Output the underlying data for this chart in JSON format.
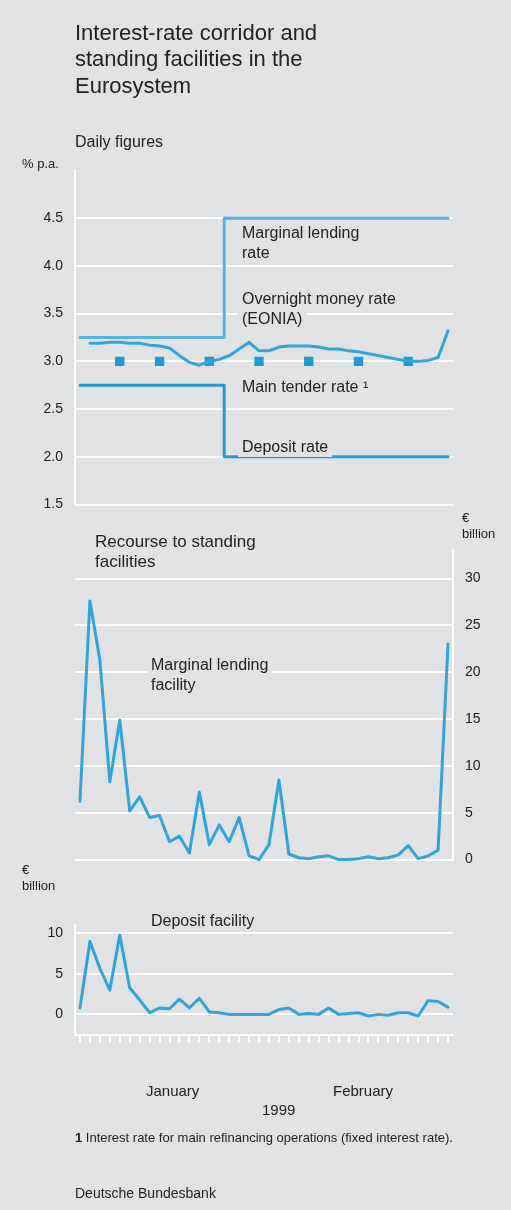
{
  "chart_data": [
    {
      "type": "line",
      "title": "Interest-rate corridor and standing facilities in the Eurosystem",
      "subtitle": "Daily figures",
      "ylabel": "% p.a.",
      "categories": [
        null,
        null,
        null,
        null,
        null,
        null,
        null,
        null,
        null,
        null,
        null,
        null,
        null,
        null,
        null,
        null,
        null,
        null,
        null,
        null,
        null,
        null,
        null,
        null,
        null,
        null,
        null,
        null,
        null,
        null,
        null,
        null,
        null,
        null,
        null,
        null,
        null,
        null
      ],
      "ylim": [
        1.5,
        5.0
      ],
      "yticks": [
        1.5,
        {
          "value": 2,
          "label": "2.0"
        },
        2.5,
        {
          "value": 3,
          "label": "3.0"
        },
        3.5,
        {
          "value": 4,
          "label": "4.0"
        },
        4.5
      ],
      "grid": "y",
      "legend": false,
      "series": [
        {
          "name": "Marginal lending rate",
          "type": "step",
          "color": "#4db6e2",
          "values": [
            3.25,
            3.25,
            3.25,
            3.25,
            3.25,
            3.25,
            3.25,
            3.25,
            3.25,
            3.25,
            3.25,
            3.25,
            3.25,
            3.25,
            3.25,
            4.5,
            4.5,
            4.5,
            4.5,
            4.5,
            4.5,
            4.5,
            4.5,
            4.5,
            4.5,
            4.5,
            4.5,
            4.5,
            4.5,
            4.5,
            4.5,
            4.5,
            4.5,
            4.5,
            4.5,
            4.5,
            4.5,
            4.5
          ]
        },
        {
          "name": "Overnight money rate (EONIA)",
          "type": "line",
          "color": "#2ea6dc",
          "values": [
            null,
            3.19,
            3.19,
            3.2,
            3.2,
            3.19,
            3.19,
            3.17,
            3.16,
            3.14,
            3.06,
            2.99,
            2.96,
            3.0,
            3.02,
            3.06,
            3.13,
            3.2,
            3.11,
            3.11,
            3.15,
            3.16,
            3.16,
            3.16,
            3.15,
            3.13,
            3.13,
            3.11,
            3.1,
            3.08,
            3.06,
            3.04,
            3.02,
            3.0,
            3.0,
            3.01,
            3.04,
            3.32
          ]
        },
        {
          "name": "Main tender rate ¹",
          "type": "scatter",
          "marker": "square",
          "color": "#1a9ad6",
          "values": [
            null,
            null,
            null,
            null,
            3.0,
            null,
            null,
            null,
            3.0,
            null,
            null,
            null,
            null,
            3.0,
            null,
            null,
            null,
            null,
            3.0,
            null,
            null,
            null,
            null,
            3.0,
            null,
            null,
            null,
            null,
            3.0,
            null,
            null,
            null,
            null,
            3.0,
            null,
            null,
            null,
            null
          ]
        },
        {
          "name": "Deposit rate",
          "type": "step",
          "color": "#1f9cd8",
          "values": [
            2.75,
            2.75,
            2.75,
            2.75,
            2.75,
            2.75,
            2.75,
            2.75,
            2.75,
            2.75,
            2.75,
            2.75,
            2.75,
            2.75,
            2.75,
            2.0,
            2.0,
            2.0,
            2.0,
            2.0,
            2.0,
            2.0,
            2.0,
            2.0,
            2.0,
            2.0,
            2.0,
            2.0,
            2.0,
            2.0,
            2.0,
            2.0,
            2.0,
            2.0,
            2.0,
            2.0,
            2.0,
            2.0
          ]
        }
      ]
    },
    {
      "type": "line",
      "title": "Recourse to standing facilities",
      "ylabel": "€ billion",
      "categories": [
        null,
        null,
        null,
        null,
        null,
        null,
        null,
        null,
        null,
        null,
        null,
        null,
        null,
        null,
        null,
        null,
        null,
        null,
        null,
        null,
        null,
        null,
        null,
        null,
        null,
        null,
        null,
        null,
        null,
        null,
        null,
        null,
        null,
        null,
        null,
        null,
        null,
        null
      ],
      "ylim": [
        0,
        33
      ],
      "yticks": [
        0,
        5,
        10,
        15,
        20,
        25,
        30
      ],
      "grid": "y",
      "legend": false,
      "series": [
        {
          "name": "Marginal lending facility",
          "color": "#2ea6dc",
          "values": [
            6.2,
            27.6,
            21.3,
            8.3,
            14.9,
            5.2,
            6.7,
            4.5,
            4.7,
            1.9,
            2.5,
            0.7,
            7.2,
            1.6,
            3.7,
            1.9,
            4.5,
            0.4,
            0,
            1.6,
            8.5,
            0.6,
            0.2,
            0.1,
            0.3,
            0.4,
            0,
            0,
            0.1,
            0.3,
            0.1,
            0.2,
            0.5,
            1.5,
            0.1,
            0.4,
            1.0,
            23.0
          ]
        }
      ]
    },
    {
      "type": "line",
      "ylabel": "€ billion",
      "categories": [
        null,
        null,
        null,
        null,
        null,
        null,
        null,
        null,
        null,
        null,
        null,
        null,
        null,
        null,
        null,
        null,
        null,
        null,
        null,
        null,
        null,
        null,
        null,
        null,
        null,
        null,
        null,
        null,
        null,
        null,
        null,
        null,
        null,
        null,
        null,
        null,
        null,
        null
      ],
      "ylim": [
        -2.5,
        11
      ],
      "yticks": [
        0,
        5,
        10
      ],
      "grid": "y",
      "legend": false,
      "series": [
        {
          "name": "Deposit facility",
          "color": "#2ea6dc",
          "values": [
            0.8,
            9.0,
            5.7,
            3.0,
            9.8,
            3.3,
            1.8,
            0.2,
            0.8,
            0.7,
            1.9,
            0.8,
            2.0,
            0.3,
            0.2,
            0,
            0,
            0,
            0,
            0,
            0.6,
            0.8,
            0,
            0.1,
            0,
            0.8,
            0,
            0.1,
            0.2,
            -0.2,
            0,
            -0.1,
            0.2,
            0.2,
            -0.2,
            1.7,
            1.6,
            0.9
          ]
        }
      ],
      "annotations": [
        "January",
        "February",
        "1999",
        "1 Interest rate for main refinancing operations (fixed interest rate).",
        "Deutsche Bundesbank"
      ]
    }
  ]
}
